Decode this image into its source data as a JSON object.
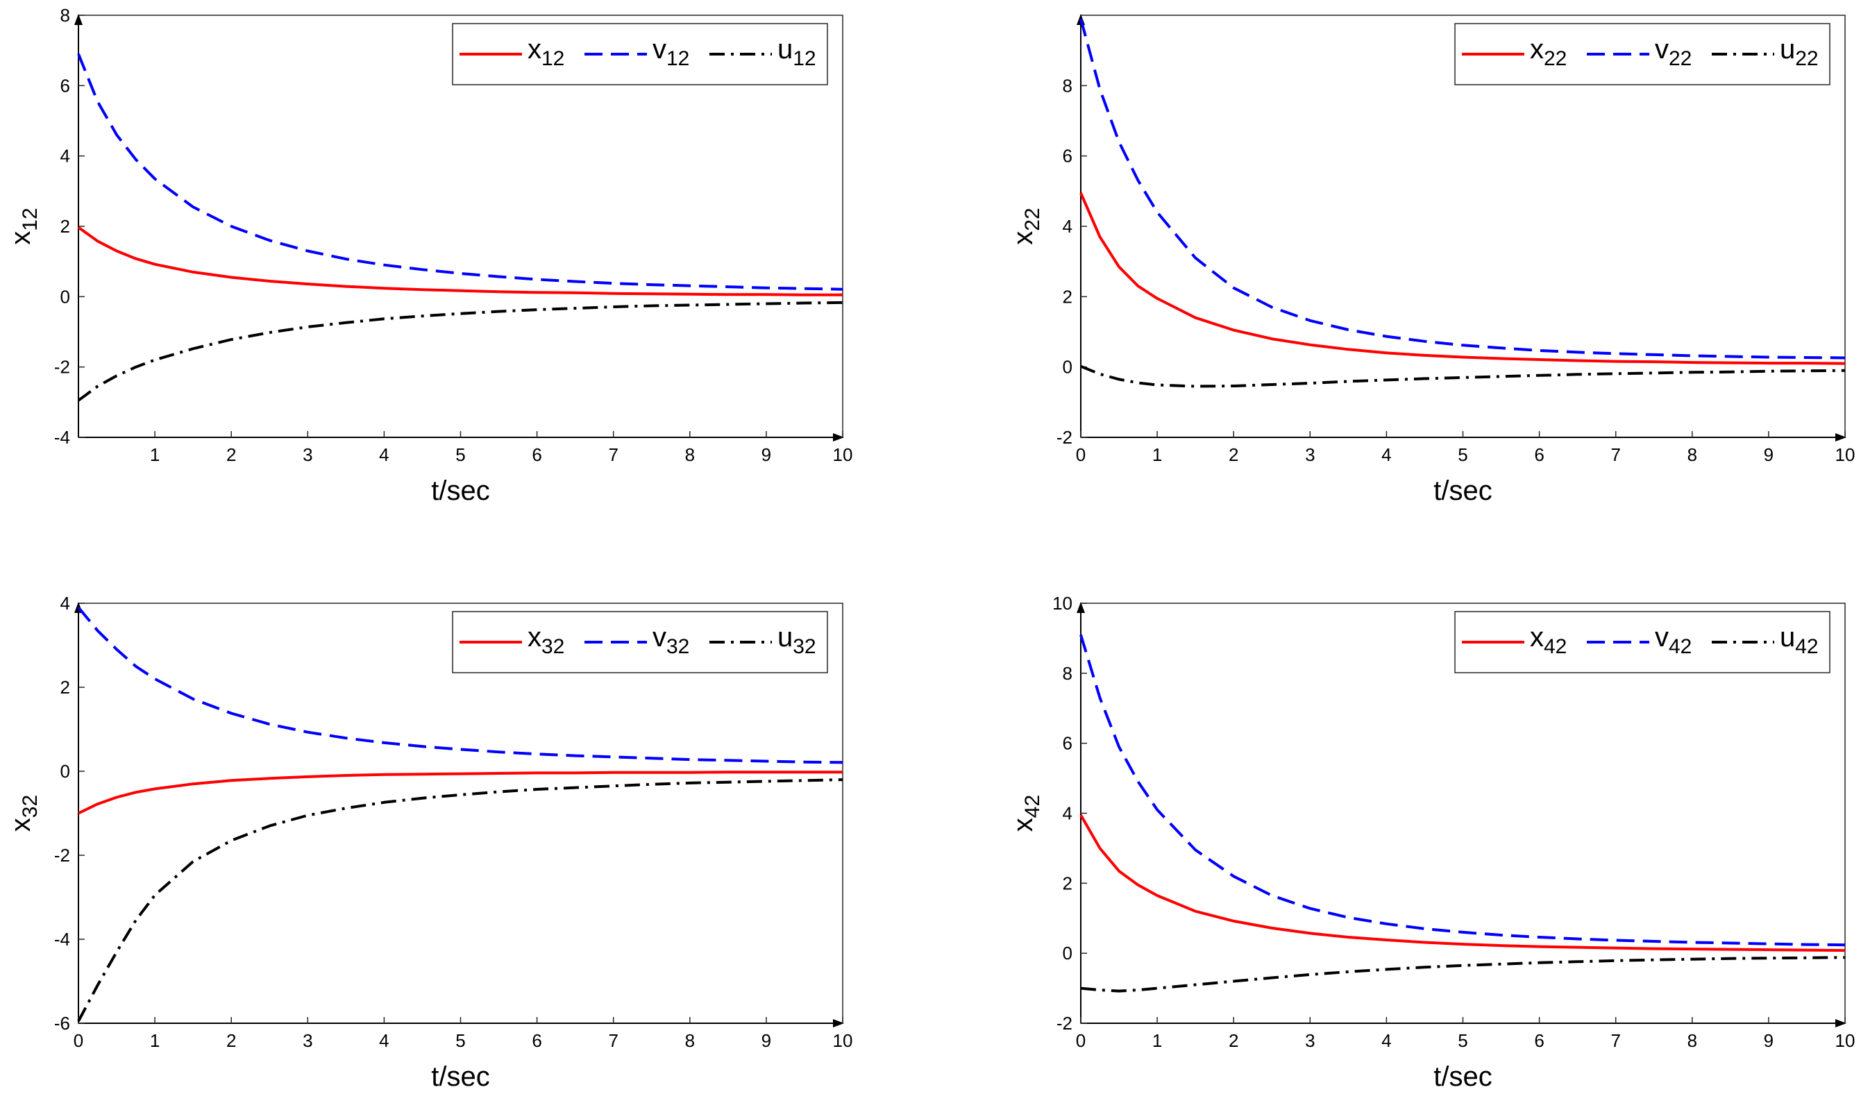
{
  "figure": {
    "xlabel": "t/sec",
    "colors": {
      "x": "#ff0000",
      "v": "#0000ff",
      "u": "#000000"
    }
  },
  "chart_data": [
    {
      "type": "line",
      "ylabel_base": "x",
      "ylabel_sub": "12",
      "xlabel": "t/sec",
      "xlim": [
        0,
        10
      ],
      "ylim": [
        -4,
        8
      ],
      "xticks": [
        1,
        2,
        3,
        4,
        5,
        6,
        7,
        8,
        9,
        10
      ],
      "yticks": [
        -4,
        -2,
        0,
        2,
        4,
        6,
        8
      ],
      "legend_position": "top-right",
      "series": [
        {
          "name": "x12",
          "base": "x",
          "sub": "12",
          "style": "solid",
          "color": "#ff0000",
          "x": [
            0,
            0.25,
            0.5,
            0.75,
            1,
            1.5,
            2,
            2.5,
            3,
            3.5,
            4,
            4.5,
            5,
            5.5,
            6,
            6.5,
            7,
            7.5,
            8,
            8.5,
            9,
            9.5,
            10
          ],
          "y": [
            1.97,
            1.58,
            1.3,
            1.08,
            0.92,
            0.7,
            0.55,
            0.44,
            0.36,
            0.29,
            0.24,
            0.2,
            0.17,
            0.14,
            0.12,
            0.11,
            0.09,
            0.08,
            0.07,
            0.06,
            0.06,
            0.05,
            0.05
          ]
        },
        {
          "name": "v12",
          "base": "v",
          "sub": "12",
          "style": "dashed",
          "color": "#0000ff",
          "x": [
            0,
            0.25,
            0.5,
            0.75,
            1,
            1.5,
            2,
            2.5,
            3,
            3.5,
            4,
            4.5,
            5,
            5.5,
            6,
            6.5,
            7,
            7.5,
            8,
            8.5,
            9,
            9.5,
            10
          ],
          "y": [
            6.9,
            5.55,
            4.6,
            3.9,
            3.35,
            2.55,
            2.0,
            1.6,
            1.3,
            1.07,
            0.9,
            0.77,
            0.66,
            0.57,
            0.49,
            0.43,
            0.38,
            0.34,
            0.31,
            0.28,
            0.25,
            0.23,
            0.21
          ]
        },
        {
          "name": "u12",
          "base": "u",
          "sub": "12",
          "style": "dashdot",
          "color": "#000000",
          "x": [
            0,
            0.25,
            0.5,
            0.75,
            1,
            1.5,
            2,
            2.5,
            3,
            3.5,
            4,
            4.5,
            5,
            5.5,
            6,
            6.5,
            7,
            7.5,
            8,
            8.5,
            9,
            9.5,
            10
          ],
          "y": [
            -2.95,
            -2.55,
            -2.25,
            -2.0,
            -1.8,
            -1.48,
            -1.22,
            -1.02,
            -0.86,
            -0.74,
            -0.63,
            -0.55,
            -0.48,
            -0.42,
            -0.37,
            -0.33,
            -0.29,
            -0.26,
            -0.24,
            -0.22,
            -0.2,
            -0.18,
            -0.17
          ]
        }
      ]
    },
    {
      "type": "line",
      "ylabel_base": "x",
      "ylabel_sub": "22",
      "xlabel": "t/sec",
      "xlim": [
        0,
        10
      ],
      "ylim": [
        -2,
        10
      ],
      "xticks": [
        0,
        1,
        2,
        3,
        4,
        5,
        6,
        7,
        8,
        9,
        10
      ],
      "yticks": [
        -2,
        0,
        2,
        4,
        6,
        8
      ],
      "legend_position": "top-right",
      "series": [
        {
          "name": "x22",
          "base": "x",
          "sub": "22",
          "style": "solid",
          "color": "#ff0000",
          "x": [
            0,
            0.25,
            0.5,
            0.75,
            1,
            1.5,
            2,
            2.5,
            3,
            3.5,
            4,
            4.5,
            5,
            5.5,
            6,
            6.5,
            7,
            7.5,
            8,
            8.5,
            9,
            9.5,
            10
          ],
          "y": [
            4.95,
            3.7,
            2.85,
            2.3,
            1.95,
            1.4,
            1.05,
            0.8,
            0.63,
            0.5,
            0.4,
            0.33,
            0.28,
            0.24,
            0.21,
            0.18,
            0.16,
            0.15,
            0.13,
            0.12,
            0.11,
            0.11,
            0.1
          ]
        },
        {
          "name": "v22",
          "base": "v",
          "sub": "22",
          "style": "dashed",
          "color": "#0000ff",
          "x": [
            0,
            0.25,
            0.5,
            0.75,
            1,
            1.5,
            2,
            2.5,
            3,
            3.5,
            4,
            4.5,
            5,
            5.5,
            6,
            6.5,
            7,
            7.5,
            8,
            8.5,
            9,
            9.5,
            10
          ],
          "y": [
            9.9,
            7.9,
            6.4,
            5.3,
            4.4,
            3.1,
            2.25,
            1.7,
            1.32,
            1.06,
            0.87,
            0.73,
            0.62,
            0.54,
            0.47,
            0.42,
            0.38,
            0.35,
            0.32,
            0.3,
            0.28,
            0.27,
            0.26
          ]
        },
        {
          "name": "u22",
          "base": "u",
          "sub": "22",
          "style": "dashdot",
          "color": "#000000",
          "x": [
            0,
            0.25,
            0.5,
            0.75,
            1,
            1.5,
            2,
            2.5,
            3,
            3.5,
            4,
            4.5,
            5,
            5.5,
            6,
            6.5,
            7,
            7.5,
            8,
            8.5,
            9,
            9.5,
            10
          ],
          "y": [
            0.02,
            -0.2,
            -0.35,
            -0.45,
            -0.51,
            -0.55,
            -0.54,
            -0.5,
            -0.46,
            -0.41,
            -0.37,
            -0.33,
            -0.3,
            -0.27,
            -0.24,
            -0.21,
            -0.19,
            -0.17,
            -0.15,
            -0.14,
            -0.12,
            -0.11,
            -0.1
          ]
        }
      ]
    },
    {
      "type": "line",
      "ylabel_base": "x",
      "ylabel_sub": "32",
      "xlabel": "t/sec",
      "xlim": [
        0,
        10
      ],
      "ylim": [
        -6,
        4
      ],
      "xticks": [
        0,
        1,
        2,
        3,
        4,
        5,
        6,
        7,
        8,
        9,
        10
      ],
      "yticks": [
        -6,
        -4,
        -2,
        0,
        2,
        4
      ],
      "legend_position": "top-right",
      "series": [
        {
          "name": "x32",
          "base": "x",
          "sub": "32",
          "style": "solid",
          "color": "#ff0000",
          "x": [
            0,
            0.25,
            0.5,
            0.75,
            1,
            1.5,
            2,
            2.5,
            3,
            3.5,
            4,
            4.5,
            5,
            5.5,
            6,
            6.5,
            7,
            7.5,
            8,
            8.5,
            9,
            9.5,
            10
          ],
          "y": [
            -1.0,
            -0.78,
            -0.62,
            -0.5,
            -0.42,
            -0.3,
            -0.22,
            -0.17,
            -0.13,
            -0.1,
            -0.08,
            -0.07,
            -0.06,
            -0.05,
            -0.04,
            -0.04,
            -0.03,
            -0.03,
            -0.03,
            -0.02,
            -0.02,
            -0.02,
            -0.02
          ]
        },
        {
          "name": "v32",
          "base": "v",
          "sub": "32",
          "style": "dashed",
          "color": "#0000ff",
          "x": [
            0,
            0.25,
            0.5,
            0.75,
            1,
            1.5,
            2,
            2.5,
            3,
            3.5,
            4,
            4.5,
            5,
            5.5,
            6,
            6.5,
            7,
            7.5,
            8,
            8.5,
            9,
            9.5,
            10
          ],
          "y": [
            3.9,
            3.35,
            2.9,
            2.5,
            2.2,
            1.72,
            1.38,
            1.12,
            0.93,
            0.79,
            0.68,
            0.59,
            0.52,
            0.46,
            0.41,
            0.37,
            0.34,
            0.31,
            0.28,
            0.26,
            0.24,
            0.22,
            0.21
          ]
        },
        {
          "name": "u32",
          "base": "u",
          "sub": "32",
          "style": "dashdot",
          "color": "#000000",
          "x": [
            0,
            0.25,
            0.5,
            0.75,
            1,
            1.5,
            2,
            2.5,
            3,
            3.5,
            4,
            4.5,
            5,
            5.5,
            6,
            6.5,
            7,
            7.5,
            8,
            8.5,
            9,
            9.5,
            10
          ],
          "y": [
            -5.95,
            -5.1,
            -4.3,
            -3.55,
            -2.95,
            -2.15,
            -1.65,
            -1.3,
            -1.05,
            -0.88,
            -0.74,
            -0.64,
            -0.56,
            -0.49,
            -0.43,
            -0.39,
            -0.35,
            -0.31,
            -0.28,
            -0.26,
            -0.24,
            -0.22,
            -0.2
          ]
        }
      ]
    },
    {
      "type": "line",
      "ylabel_base": "x",
      "ylabel_sub": "42",
      "xlabel": "t/sec",
      "xlim": [
        0,
        10
      ],
      "ylim": [
        -2,
        10
      ],
      "xticks": [
        0,
        1,
        2,
        3,
        4,
        5,
        6,
        7,
        8,
        9,
        10
      ],
      "yticks": [
        -2,
        0,
        2,
        4,
        6,
        8,
        10
      ],
      "legend_position": "top-right",
      "series": [
        {
          "name": "x42",
          "base": "x",
          "sub": "42",
          "style": "solid",
          "color": "#ff0000",
          "x": [
            0,
            0.25,
            0.5,
            0.75,
            1,
            1.5,
            2,
            2.5,
            3,
            3.5,
            4,
            4.5,
            5,
            5.5,
            6,
            6.5,
            7,
            7.5,
            8,
            8.5,
            9,
            9.5,
            10
          ],
          "y": [
            3.95,
            3.0,
            2.35,
            1.95,
            1.65,
            1.2,
            0.92,
            0.72,
            0.57,
            0.46,
            0.38,
            0.31,
            0.26,
            0.22,
            0.19,
            0.17,
            0.15,
            0.13,
            0.12,
            0.11,
            0.1,
            0.09,
            0.08
          ]
        },
        {
          "name": "v42",
          "base": "v",
          "sub": "42",
          "style": "dashed",
          "color": "#0000ff",
          "x": [
            0,
            0.25,
            0.5,
            0.75,
            1,
            1.5,
            2,
            2.5,
            3,
            3.5,
            4,
            4.5,
            5,
            5.5,
            6,
            6.5,
            7,
            7.5,
            8,
            8.5,
            9,
            9.5,
            10
          ],
          "y": [
            9.1,
            7.3,
            5.9,
            4.9,
            4.1,
            2.95,
            2.2,
            1.65,
            1.28,
            1.02,
            0.84,
            0.7,
            0.6,
            0.52,
            0.46,
            0.41,
            0.37,
            0.34,
            0.31,
            0.29,
            0.27,
            0.25,
            0.24
          ]
        },
        {
          "name": "u42",
          "base": "u",
          "sub": "42",
          "style": "dashdot",
          "color": "#000000",
          "x": [
            0,
            0.25,
            0.5,
            0.75,
            1,
            1.5,
            2,
            2.5,
            3,
            3.5,
            4,
            4.5,
            5,
            5.5,
            6,
            6.5,
            7,
            7.5,
            8,
            8.5,
            9,
            9.5,
            10
          ],
          "y": [
            -1.0,
            -1.05,
            -1.08,
            -1.05,
            -1.0,
            -0.9,
            -0.8,
            -0.7,
            -0.61,
            -0.53,
            -0.46,
            -0.4,
            -0.35,
            -0.31,
            -0.27,
            -0.24,
            -0.21,
            -0.19,
            -0.17,
            -0.15,
            -0.14,
            -0.13,
            -0.12
          ]
        }
      ]
    }
  ]
}
